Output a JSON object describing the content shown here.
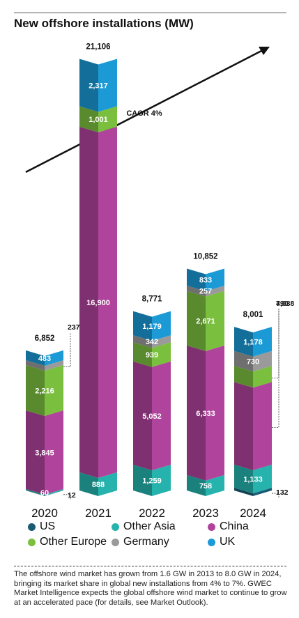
{
  "title": "New offshore installations (MW)",
  "cagr_label": "CAGR 4%",
  "colors": {
    "US": "#1a5b73",
    "Other Asia": "#26b3ad",
    "China": "#b0439b",
    "Other Europe": "#7bbf3f",
    "Germany": "#9a9a9a",
    "UK": "#1b9ad6"
  },
  "chart_data": {
    "type": "bar",
    "stacked": true,
    "categories": [
      "2020",
      "2021",
      "2022",
      "2023",
      "2024"
    ],
    "series": [
      {
        "name": "US",
        "values": [
          12,
          0,
          0,
          0,
          132
        ]
      },
      {
        "name": "Other Asia",
        "values": [
          60,
          888,
          1259,
          758,
          1133
        ]
      },
      {
        "name": "China",
        "values": [
          3845,
          16900,
          5052,
          6333,
          4038
        ]
      },
      {
        "name": "Other Europe",
        "values": [
          2216,
          1001,
          939,
          2671,
          790
        ]
      },
      {
        "name": "Germany",
        "values": [
          237,
          0,
          342,
          257,
          730
        ]
      },
      {
        "name": "UK",
        "values": [
          483,
          2317,
          1179,
          833,
          1178
        ]
      }
    ],
    "totals": [
      "6,852",
      "21,106",
      "8,771",
      "10,852",
      "8,001"
    ],
    "segment_labels": [
      [
        "12",
        "60",
        "3,845",
        "2,216",
        "237",
        "483"
      ],
      [
        "",
        "888",
        "16,900",
        "1,001",
        "",
        "2,317"
      ],
      [
        "",
        "1,259",
        "5,052",
        "939",
        "342",
        "1,179"
      ],
      [
        "",
        "758",
        "6,333",
        "2,671",
        "257",
        "833"
      ],
      [
        "132",
        "1,133",
        "4,038",
        "790",
        "730",
        "1,178"
      ]
    ],
    "legend_position": "bottom",
    "grid": false
  },
  "footnote": "The offshore wind market has grown from 1.6 GW in 2013 to 8.0 GW in 2024, bringing its market share in global new installations from 4% to 7%. GWEC Market Intelligence expects the global offshore wind market to continue to grow at an accelerated pace (for details, see Market Outlook)."
}
